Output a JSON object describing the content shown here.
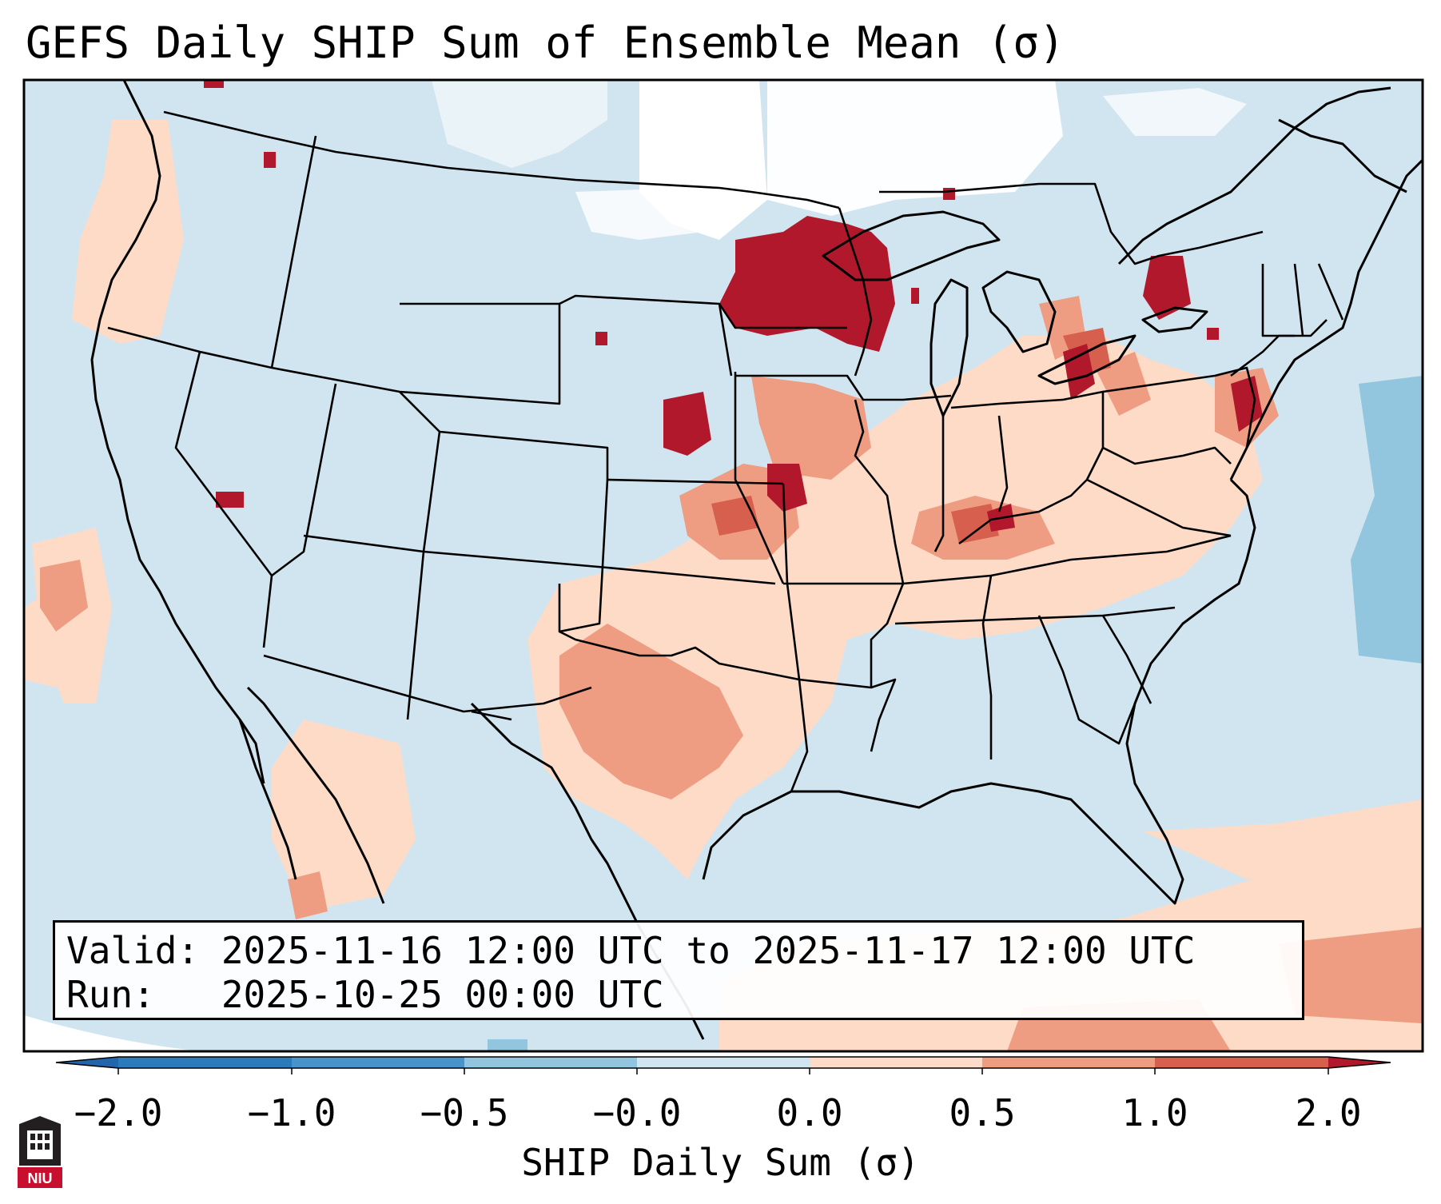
{
  "title": "GEFS Daily SHIP Sum of Ensemble Mean (σ)",
  "info": {
    "valid_line": "Valid: 2025-11-16 12:00 UTC to 2025-11-17 12:00 UTC",
    "run_line": "Run:   2025-10-25 00:00 UTC"
  },
  "colorbar": {
    "label": "SHIP Daily Sum (σ)",
    "ticks": [
      "−2.0",
      "−1.0",
      "−0.5",
      "−0.0",
      "0.0",
      "0.5",
      "1.0",
      "2.0"
    ],
    "colors": [
      "#2b7bba",
      "#4a93c8",
      "#93c4df",
      "#d1e5f0",
      "#f7f7f7",
      "#fddbc7",
      "#ef9d82",
      "#d6604d",
      "#b2182b"
    ],
    "extend": "both"
  },
  "field_colors": {
    "below_-0.5": "#92c5de",
    "-0.5_to_0": "#d1e5f0",
    "near_0": "#ffffff",
    "0_to_0.5": "#fddbc7",
    "0.5_to_1": "#ef9d82",
    "1_to_2": "#d6604d",
    "above_2": "#b2182b"
  },
  "logo": {
    "text": "NIU",
    "color": "#c8102e"
  }
}
